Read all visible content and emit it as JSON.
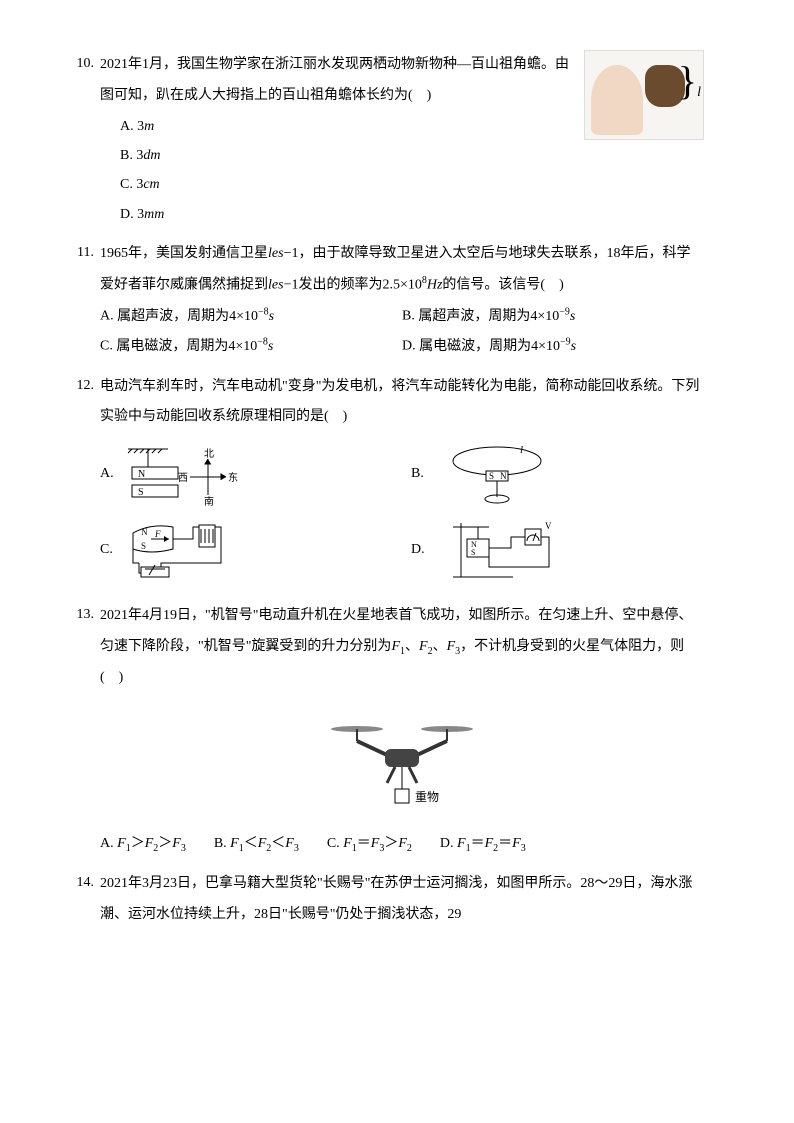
{
  "q10": {
    "number": "10.",
    "text": "2021年1月，我国生物学家在浙江丽水发现两栖动物新物种—百山祖角蟾。由图可知，趴在成人大拇指上的百山祖角蟾体长约为(　)",
    "opts": [
      {
        "label": "A.",
        "body_html": "3<span class='italic'>m</span>"
      },
      {
        "label": "B.",
        "body_html": "3<span class='italic'>dm</span>"
      },
      {
        "label": "C.",
        "body_html": "3<span class='italic'>cm</span>"
      },
      {
        "label": "D.",
        "body_html": "3<span class='italic'>mm</span>"
      }
    ],
    "figure": {
      "l_label": "l"
    }
  },
  "q11": {
    "number": "11.",
    "text_html": "1965年，美国发射通信卫星<span class='italic'>les</span>−1，由于故障导致卫星进入太空后与地球失去联系，18年后，科学爱好者菲尔威廉偶然捕捉到<span class='italic'>les</span>−1发出的频率为2.5×10<sup class='exp'>8</sup><span class='italic'>Hz</span>的信号。该信号(　)",
    "opts": [
      {
        "label": "A.",
        "body_html": "属超声波，周期为4×10<sup class='exp'>−8</sup><span class='italic'>s</span>"
      },
      {
        "label": "B.",
        "body_html": "属超声波，周期为4×10<sup class='exp'>−9</sup><span class='italic'>s</span>"
      },
      {
        "label": "C.",
        "body_html": "属电磁波，周期为4×10<sup class='exp'>−8</sup><span class='italic'>s</span>"
      },
      {
        "label": "D.",
        "body_html": "属电磁波，周期为4×10<sup class='exp'>−9</sup><span class='italic'>s</span>"
      }
    ]
  },
  "q12": {
    "number": "12.",
    "text": "电动汽车刹车时，汽车电动机\"变身\"为发电机，将汽车动能转化为电能，简称动能回收系统。下列实验中与动能回收系统原理相同的是(　)",
    "opts": [
      {
        "label": "A."
      },
      {
        "label": "B."
      },
      {
        "label": "C."
      },
      {
        "label": "D."
      }
    ],
    "diagA_labels": {
      "n": "N",
      "s": "S",
      "north": "北",
      "south": "南",
      "east": "东",
      "west": "西"
    },
    "diagB_labels": {
      "s": "S",
      "n": "N"
    },
    "diagC_labels": {
      "n": "N",
      "s": "S",
      "f": "F"
    },
    "diagD_labels": {
      "n": "N",
      "s": "S",
      "v": "V"
    }
  },
  "q13": {
    "number": "13.",
    "text_html": "2021年4月19日，\"机智号\"电动直升机在火星地表首飞成功，如图所示。在匀速上升、空中悬停、匀速下降阶段，\"机智号\"旋翼受到的升力分别为<span class='italic'>F</span><span class='sub'>1</span>、<span class='italic'>F</span><span class='sub'>2</span>、<span class='italic'>F</span><span class='sub'>3</span>，不计机身受到的火星气体阻力，则(　)",
    "drone_label": "重物",
    "opts": [
      {
        "label": "A.",
        "body_html": "<span class='italic'>F</span><span class='sub'>1</span>＞<span class='italic'>F</span><span class='sub'>2</span>＞<span class='italic'>F</span><span class='sub'>3</span>"
      },
      {
        "label": "B.",
        "body_html": "<span class='italic'>F</span><span class='sub'>1</span>＜<span class='italic'>F</span><span class='sub'>2</span>＜<span class='italic'>F</span><span class='sub'>3</span>"
      },
      {
        "label": "C.",
        "body_html": "<span class='italic'>F</span><span class='sub'>1</span>＝<span class='italic'>F</span><span class='sub'>3</span>＞<span class='italic'>F</span><span class='sub'>2</span>"
      },
      {
        "label": "D.",
        "body_html": "<span class='italic'>F</span><span class='sub'>1</span>＝<span class='italic'>F</span><span class='sub'>2</span>＝<span class='italic'>F</span><span class='sub'>3</span>"
      }
    ]
  },
  "q14": {
    "number": "14.",
    "text": "2021年3月23日，巴拿马籍大型货轮\"长赐号\"在苏伊士运河搁浅，如图甲所示。28～29日，海水涨潮、运河水位持续上升，28日\"长赐号\"仍处于搁浅状态，29"
  },
  "colors": {
    "text": "#000000",
    "background": "#ffffff",
    "thumb": "#f0d8c4",
    "frog": "#6a4b2e",
    "line": "#000000"
  }
}
